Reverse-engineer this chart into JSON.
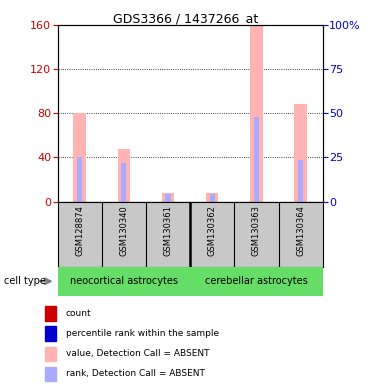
{
  "title": "GDS3366 / 1437266_at",
  "samples": [
    "GSM128874",
    "GSM130340",
    "GSM130361",
    "GSM130362",
    "GSM130363",
    "GSM130364"
  ],
  "pink_values": [
    80,
    48,
    8,
    8,
    160,
    88
  ],
  "blue_rank_values": [
    40,
    35,
    7,
    7,
    77,
    38
  ],
  "ylim_left": [
    0,
    160
  ],
  "ylim_right": [
    0,
    100
  ],
  "left_ticks": [
    0,
    40,
    80,
    120,
    160
  ],
  "right_ticks": [
    0,
    25,
    50,
    75,
    100
  ],
  "right_tick_labels": [
    "0",
    "25",
    "50",
    "75",
    "100%"
  ],
  "left_tick_color": "#cc0000",
  "right_tick_color": "#0000cc",
  "pink_color": "#ffb3b3",
  "lightblue_color": "#aaaaff",
  "red_color": "#cc0000",
  "blue_color": "#0000cc",
  "bg_color": "#ffffff",
  "gray_color": "#c8c8c8",
  "green_color": "#66dd66",
  "neocortical_label": "neocortical astrocytes",
  "cerebellar_label": "cerebellar astrocytes",
  "cell_type_label": "cell type",
  "legend_labels": [
    "count",
    "percentile rank within the sample",
    "value, Detection Call = ABSENT",
    "rank, Detection Call = ABSENT"
  ],
  "legend_colors": [
    "#cc0000",
    "#0000cc",
    "#ffb3b3",
    "#aaaaff"
  ]
}
